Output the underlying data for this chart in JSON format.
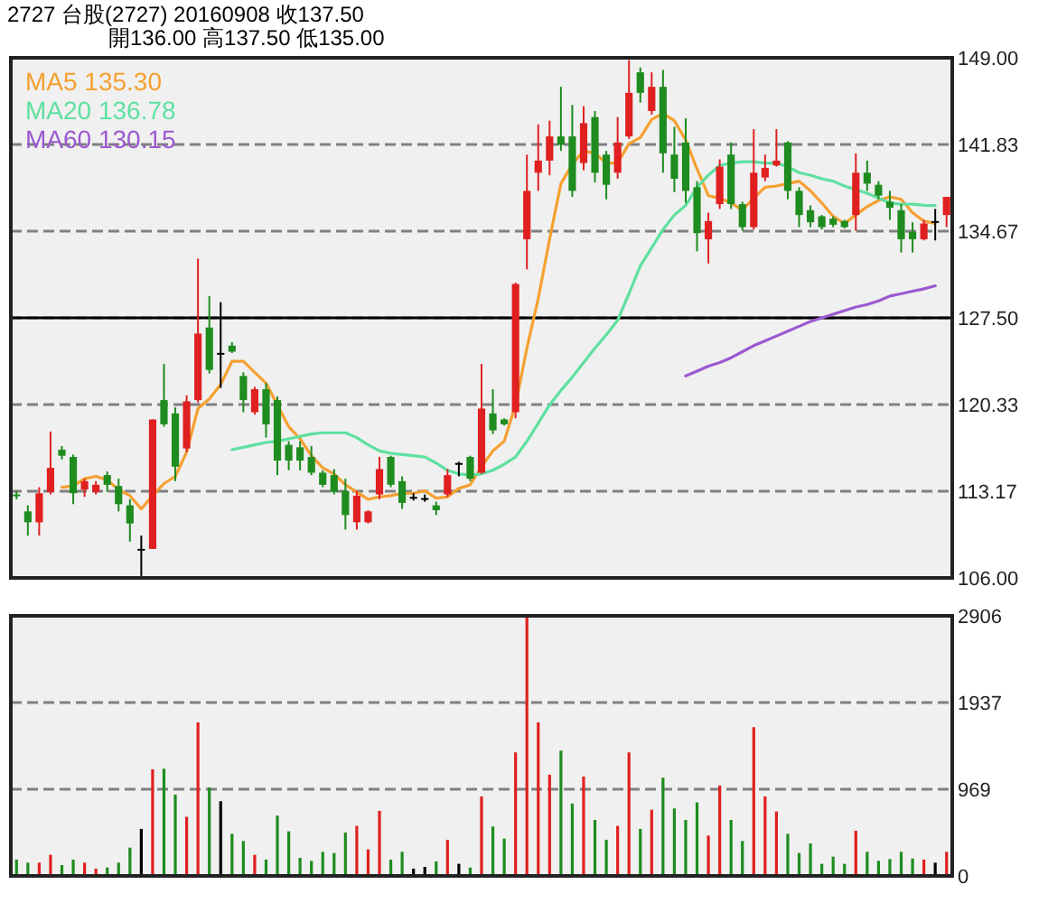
{
  "chart_data": [
    {
      "type": "candlestick",
      "title": "2727  台股(2727) 20160908  收137.50",
      "subtitle": "開136.00  高137.50  低135.00",
      "categories": [
        null,
        null,
        null,
        null,
        null,
        null,
        null,
        null,
        null,
        null,
        null,
        null,
        null,
        null,
        null,
        null,
        null,
        null,
        null,
        null,
        null,
        null,
        null,
        null,
        null,
        null,
        null,
        null,
        null,
        null,
        null,
        null,
        null,
        null,
        null,
        null,
        null,
        null,
        null,
        null,
        null,
        null,
        null,
        null,
        null,
        null,
        null,
        null,
        null,
        null,
        null,
        null,
        null,
        null,
        null,
        null,
        null,
        null,
        null,
        null,
        null,
        null,
        null,
        null,
        null,
        null,
        null,
        null,
        null,
        null,
        null,
        null,
        null,
        null,
        null,
        null,
        null,
        null,
        null,
        null,
        null,
        null,
        null
      ],
      "ohlc": [
        [
          112.9,
          113.2,
          112.5,
          112.8
        ],
        [
          111.5,
          112.0,
          109.5,
          110.6
        ],
        [
          110.6,
          113.5,
          109.5,
          113.0
        ],
        [
          113.1,
          118.1,
          112.9,
          115.1
        ],
        [
          116.6,
          116.9,
          115.8,
          116.1
        ],
        [
          116.0,
          116.2,
          112.1,
          113.0
        ],
        [
          113.3,
          114.2,
          112.7,
          114.0
        ],
        [
          113.1,
          114.0,
          112.9,
          113.7
        ],
        [
          114.5,
          114.8,
          113.1,
          113.7
        ],
        [
          113.6,
          114.2,
          111.5,
          112.1
        ],
        [
          112.0,
          112.5,
          109.0,
          110.5
        ],
        [
          108.4,
          109.5,
          106.0,
          108.4
        ],
        [
          108.4,
          119.1,
          108.4,
          119.1
        ],
        [
          120.7,
          123.7,
          118.5,
          118.7
        ],
        [
          119.6,
          120.1,
          114.0,
          115.2
        ],
        [
          116.7,
          121.1,
          116.4,
          120.6
        ],
        [
          120.7,
          132.4,
          120.5,
          126.2
        ],
        [
          126.7,
          129.3,
          122.9,
          123.2
        ],
        [
          124.6,
          128.8,
          121.7,
          124.6
        ],
        [
          125.2,
          125.5,
          124.6,
          124.7
        ],
        [
          122.7,
          123.0,
          119.7,
          120.7
        ],
        [
          119.7,
          121.8,
          119.5,
          121.6
        ],
        [
          121.6,
          122.1,
          117.6,
          118.7
        ],
        [
          120.7,
          121.0,
          114.5,
          115.7
        ],
        [
          117.0,
          117.3,
          114.9,
          115.7
        ],
        [
          116.8,
          117.3,
          114.9,
          115.7
        ],
        [
          116.0,
          116.9,
          114.5,
          114.7
        ],
        [
          114.7,
          114.9,
          113.5,
          113.7
        ],
        [
          114.5,
          115.0,
          112.9,
          113.1
        ],
        [
          113.2,
          114.2,
          110.0,
          111.2
        ],
        [
          110.6,
          113.2,
          110.0,
          112.8
        ],
        [
          110.6,
          111.6,
          110.5,
          111.5
        ],
        [
          112.9,
          116.0,
          112.5,
          115.0
        ],
        [
          116.0,
          116.1,
          113.5,
          113.7
        ],
        [
          114.0,
          114.4,
          111.7,
          112.2
        ],
        [
          112.7,
          113.0,
          112.4,
          112.7
        ],
        [
          112.6,
          112.9,
          112.3,
          112.6
        ],
        [
          112.0,
          112.3,
          111.2,
          111.6
        ],
        [
          112.9,
          115.0,
          112.7,
          114.5
        ],
        [
          115.5,
          115.6,
          114.4,
          115.5
        ],
        [
          116.0,
          116.1,
          114.0,
          114.2
        ],
        [
          114.7,
          123.7,
          114.6,
          120.0
        ],
        [
          119.6,
          121.6,
          117.9,
          118.2
        ],
        [
          119.1,
          119.2,
          118.6,
          118.7
        ],
        [
          119.7,
          130.4,
          119.2,
          130.3
        ],
        [
          134.0,
          141.0,
          131.5,
          138.0
        ],
        [
          139.5,
          143.5,
          138.0,
          140.5
        ],
        [
          140.5,
          143.8,
          139.3,
          142.5
        ],
        [
          142.5,
          146.6,
          141.3,
          141.8
        ],
        [
          142.5,
          145.1,
          137.5,
          138.0
        ],
        [
          140.3,
          145.0,
          139.7,
          143.6
        ],
        [
          144.1,
          144.6,
          138.7,
          139.5
        ],
        [
          141.0,
          141.3,
          137.3,
          138.5
        ],
        [
          139.5,
          144.1,
          139.0,
          142.0
        ],
        [
          142.5,
          148.8,
          142.3,
          146.1
        ],
        [
          147.8,
          148.2,
          145.3,
          146.1
        ],
        [
          144.6,
          147.8,
          144.3,
          146.6
        ],
        [
          146.6,
          148.0,
          139.5,
          141.1
        ],
        [
          141.0,
          143.3,
          137.9,
          139.0
        ],
        [
          142.0,
          144.0,
          137.0,
          138.0
        ],
        [
          138.3,
          138.8,
          133.0,
          134.5
        ],
        [
          134.0,
          136.2,
          132.0,
          135.5
        ],
        [
          136.9,
          140.6,
          136.5,
          140.0
        ],
        [
          141.0,
          142.0,
          136.5,
          136.9
        ],
        [
          136.9,
          137.1,
          134.7,
          135.0
        ],
        [
          135.0,
          143.1,
          134.8,
          139.5
        ],
        [
          139.1,
          141.0,
          138.8,
          139.9
        ],
        [
          140.1,
          143.1,
          140.0,
          140.5
        ],
        [
          142.0,
          142.1,
          137.3,
          138.0
        ],
        [
          138.0,
          138.3,
          135.0,
          136.0
        ],
        [
          136.4,
          136.8,
          135.0,
          135.4
        ],
        [
          135.9,
          136.0,
          134.8,
          135.0
        ],
        [
          135.7,
          135.9,
          135.0,
          135.2
        ],
        [
          135.5,
          135.6,
          134.9,
          135.0
        ],
        [
          136.0,
          141.1,
          134.7,
          139.5
        ],
        [
          139.5,
          140.5,
          138.0,
          138.6
        ],
        [
          138.5,
          138.8,
          137.3,
          137.6
        ],
        [
          137.1,
          138.0,
          135.6,
          136.6
        ],
        [
          136.4,
          136.9,
          132.9,
          134.0
        ],
        [
          134.6,
          135.4,
          132.9,
          134.0
        ],
        [
          134.0,
          135.6,
          133.9,
          135.3
        ],
        [
          135.5,
          136.5,
          133.9,
          135.5
        ],
        [
          136.0,
          137.5,
          135.0,
          137.5
        ]
      ],
      "colors": [
        "#1e8c1e",
        "#1e8c1e",
        "#e02020",
        "#e02020",
        "#1e8c1e",
        "#1e8c1e",
        "#e02020",
        "#e02020",
        "#1e8c1e",
        "#1e8c1e",
        "#1e8c1e",
        "#000000",
        "#e02020",
        "#1e8c1e",
        "#1e8c1e",
        "#e02020",
        "#e02020",
        "#1e8c1e",
        "#000000",
        "#1e8c1e",
        "#1e8c1e",
        "#e02020",
        "#1e8c1e",
        "#1e8c1e",
        "#1e8c1e",
        "#1e8c1e",
        "#1e8c1e",
        "#1e8c1e",
        "#1e8c1e",
        "#1e8c1e",
        "#e02020",
        "#e02020",
        "#e02020",
        "#1e8c1e",
        "#1e8c1e",
        "#000000",
        "#000000",
        "#1e8c1e",
        "#e02020",
        "#000000",
        "#1e8c1e",
        "#e02020",
        "#1e8c1e",
        "#1e8c1e",
        "#e02020",
        "#e02020",
        "#e02020",
        "#e02020",
        "#1e8c1e",
        "#1e8c1e",
        "#e02020",
        "#1e8c1e",
        "#1e8c1e",
        "#e02020",
        "#e02020",
        "#1e8c1e",
        "#e02020",
        "#1e8c1e",
        "#1e8c1e",
        "#1e8c1e",
        "#1e8c1e",
        "#e02020",
        "#e02020",
        "#1e8c1e",
        "#1e8c1e",
        "#e02020",
        "#e02020",
        "#e02020",
        "#1e8c1e",
        "#1e8c1e",
        "#1e8c1e",
        "#1e8c1e",
        "#1e8c1e",
        "#1e8c1e",
        "#e02020",
        "#1e8c1e",
        "#1e8c1e",
        "#1e8c1e",
        "#1e8c1e",
        "#1e8c1e",
        "#e02020",
        "#000000",
        "#e02020"
      ],
      "series": [
        {
          "name": "MA5 135.30",
          "type": "line",
          "color": "#f5a030",
          "values": [
            null,
            null,
            null,
            null,
            113.5,
            113.6,
            114.2,
            114.4,
            114.1,
            113.3,
            112.8,
            111.7,
            112.8,
            113.8,
            114.4,
            116.4,
            120.0,
            120.8,
            122.0,
            123.9,
            123.9,
            123.0,
            122.1,
            120.3,
            118.5,
            117.5,
            116.1,
            115.1,
            114.6,
            113.7,
            113.1,
            112.5,
            112.7,
            112.8,
            113.0,
            113.0,
            113.2,
            112.6,
            112.7,
            113.4,
            113.7,
            115.2,
            116.5,
            117.3,
            120.3,
            125.0,
            129.1,
            134.0,
            138.6,
            140.2,
            141.3,
            141.1,
            140.3,
            140.3,
            141.9,
            142.4,
            143.9,
            144.4,
            143.8,
            142.2,
            139.8,
            137.6,
            137.4,
            137.0,
            136.4,
            137.4,
            138.3,
            138.4,
            138.6,
            138.8,
            138.0,
            137.0,
            135.9,
            135.3,
            136.0,
            136.7,
            137.2,
            137.5,
            137.3,
            136.2,
            135.5,
            135.3,
            null
          ]
        },
        {
          "name": "MA20 136.78",
          "type": "line",
          "color": "#5ee0a0",
          "values": [
            null,
            null,
            null,
            null,
            null,
            null,
            null,
            null,
            null,
            null,
            null,
            null,
            null,
            null,
            null,
            null,
            null,
            null,
            null,
            116.6,
            116.8,
            117.0,
            117.2,
            117.3,
            117.5,
            117.7,
            117.9,
            118.0,
            118.0,
            118.0,
            117.6,
            117.0,
            116.5,
            116.3,
            116.2,
            116.1,
            116.0,
            115.5,
            114.9,
            114.6,
            114.5,
            114.6,
            114.9,
            115.4,
            116.0,
            117.3,
            118.8,
            120.3,
            121.5,
            122.6,
            123.8,
            125.0,
            126.1,
            127.3,
            129.5,
            131.8,
            133.3,
            134.8,
            136.0,
            136.8,
            138.3,
            139.3,
            140.1,
            140.3,
            140.4,
            140.4,
            140.3,
            140.3,
            140.0,
            139.5,
            139.3,
            139.0,
            138.8,
            138.4,
            138.1,
            137.8,
            137.4,
            137.0,
            136.9,
            136.9,
            136.8,
            136.78,
            null
          ]
        },
        {
          "name": "MA60 130.15",
          "type": "line",
          "color": "#9b59d0",
          "values": [
            null,
            null,
            null,
            null,
            null,
            null,
            null,
            null,
            null,
            null,
            null,
            null,
            null,
            null,
            null,
            null,
            null,
            null,
            null,
            null,
            null,
            null,
            null,
            null,
            null,
            null,
            null,
            null,
            null,
            null,
            null,
            null,
            null,
            null,
            null,
            null,
            null,
            null,
            null,
            null,
            null,
            null,
            null,
            null,
            null,
            null,
            null,
            null,
            null,
            null,
            null,
            null,
            null,
            null,
            null,
            null,
            null,
            null,
            null,
            122.7,
            123.1,
            123.5,
            123.8,
            124.2,
            124.7,
            125.2,
            125.6,
            126.0,
            126.4,
            126.8,
            127.2,
            127.5,
            127.8,
            128.1,
            128.4,
            128.6,
            128.9,
            129.3,
            129.5,
            129.7,
            129.9,
            130.15,
            null
          ]
        }
      ],
      "ylim": [
        106,
        149
      ],
      "yticks": [
        {
          "value": 106,
          "label": "106.00"
        },
        {
          "value": 113.17,
          "label": "113.17"
        },
        {
          "value": 120.33,
          "label": "120.33"
        },
        {
          "value": 127.5,
          "label": "127.50"
        },
        {
          "value": 134.67,
          "label": "134.67"
        },
        {
          "value": 141.83,
          "label": "141.83"
        },
        {
          "value": 149,
          "label": "149.00"
        }
      ],
      "grid": "y",
      "ref_lines": [
        {
          "axis": "y",
          "value": 127.5,
          "color": "#000000",
          "line_style": "solid"
        }
      ],
      "legend": "top left",
      "tick_labels": "y"
    },
    {
      "type": "bar",
      "categories": [
        null,
        null,
        null,
        null,
        null,
        null,
        null,
        null,
        null,
        null,
        null,
        null,
        null,
        null,
        null,
        null,
        null,
        null,
        null,
        null,
        null,
        null,
        null,
        null,
        null,
        null,
        null,
        null,
        null,
        null,
        null,
        null,
        null,
        null,
        null,
        null,
        null,
        null,
        null,
        null,
        null,
        null,
        null,
        null,
        null,
        null,
        null,
        null,
        null,
        null,
        null,
        null,
        null,
        null,
        null,
        null,
        null,
        null,
        null,
        null,
        null,
        null,
        null,
        null,
        null,
        null,
        null,
        null,
        null,
        null,
        null,
        null,
        null,
        null,
        null,
        null,
        null,
        null,
        null,
        null,
        null,
        null,
        null
      ],
      "values": [
        182,
        148,
        148,
        236,
        121,
        182,
        148,
        81,
        94,
        148,
        316,
        525,
        1191,
        1198,
        909,
        660,
        1716,
        989,
        835,
        471,
        390,
        236,
        182,
        673,
        498,
        202,
        168,
        269,
        256,
        485,
        559,
        296,
        727,
        182,
        269,
        81,
        101,
        162,
        404,
        135,
        94,
        888,
        552,
        417,
        1380,
        2900,
        1716,
        1131,
        1400,
        808,
        1110,
        626,
        404,
        559,
        1380,
        525,
        740,
        1097,
        754,
        626,
        821,
        451,
        1010,
        626,
        390,
        1662,
        888,
        720,
        471,
        256,
        363,
        135,
        215,
        135,
        505,
        269,
        168,
        188,
        269,
        195,
        182,
        148,
        269
      ],
      "colors": [
        "#1e8c1e",
        "#1e8c1e",
        "#e02020",
        "#e02020",
        "#1e8c1e",
        "#1e8c1e",
        "#e02020",
        "#e02020",
        "#1e8c1e",
        "#1e8c1e",
        "#1e8c1e",
        "#000000",
        "#e02020",
        "#1e8c1e",
        "#1e8c1e",
        "#e02020",
        "#e02020",
        "#1e8c1e",
        "#000000",
        "#1e8c1e",
        "#1e8c1e",
        "#e02020",
        "#1e8c1e",
        "#1e8c1e",
        "#1e8c1e",
        "#1e8c1e",
        "#1e8c1e",
        "#1e8c1e",
        "#1e8c1e",
        "#1e8c1e",
        "#e02020",
        "#e02020",
        "#e02020",
        "#1e8c1e",
        "#1e8c1e",
        "#000000",
        "#000000",
        "#1e8c1e",
        "#e02020",
        "#000000",
        "#1e8c1e",
        "#e02020",
        "#1e8c1e",
        "#1e8c1e",
        "#e02020",
        "#e02020",
        "#e02020",
        "#e02020",
        "#1e8c1e",
        "#1e8c1e",
        "#e02020",
        "#1e8c1e",
        "#1e8c1e",
        "#e02020",
        "#e02020",
        "#1e8c1e",
        "#e02020",
        "#1e8c1e",
        "#1e8c1e",
        "#1e8c1e",
        "#1e8c1e",
        "#e02020",
        "#e02020",
        "#1e8c1e",
        "#1e8c1e",
        "#e02020",
        "#e02020",
        "#e02020",
        "#1e8c1e",
        "#1e8c1e",
        "#1e8c1e",
        "#1e8c1e",
        "#1e8c1e",
        "#1e8c1e",
        "#e02020",
        "#1e8c1e",
        "#1e8c1e",
        "#1e8c1e",
        "#1e8c1e",
        "#1e8c1e",
        "#e02020",
        "#000000",
        "#e02020"
      ],
      "ylim": [
        0,
        2906
      ],
      "yticks": [
        0,
        969,
        1937,
        2906
      ],
      "grid": "y",
      "tick_labels": "y"
    }
  ]
}
